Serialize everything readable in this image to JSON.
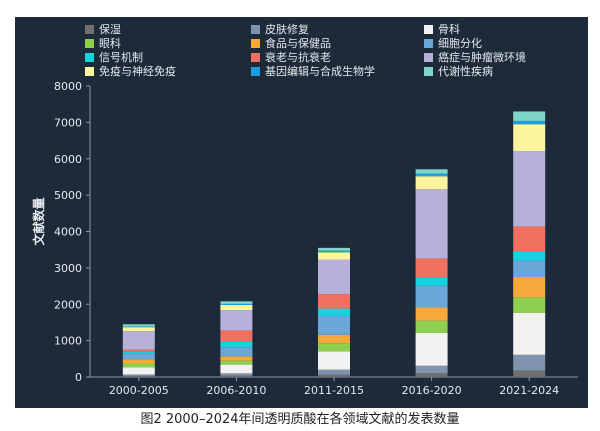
{
  "caption": "图2   2000–2024年间透明质酸在各领域文献的发表数量",
  "chart_data": {
    "type": "bar",
    "stacked": true,
    "categories": [
      "2000-2005",
      "2006-2010",
      "2011-2015",
      "2016-2020",
      "2021-2024"
    ],
    "ylabel": "文献数量",
    "xlabel": "",
    "ylim": [
      0,
      8000
    ],
    "yticks": [
      "0",
      "1000",
      "2000",
      "3000",
      "4000",
      "5000",
      "6000",
      "7000",
      "8000"
    ],
    "legend_position": "top",
    "grid": false,
    "series": [
      {
        "name": "保湿",
        "color": "#6f6f6f",
        "values": [
          30,
          40,
          60,
          110,
          180
        ]
      },
      {
        "name": "皮肤修复",
        "color": "#7f93ae",
        "values": [
          40,
          60,
          140,
          200,
          430
        ]
      },
      {
        "name": "骨科",
        "color": "#f2f2f2",
        "values": [
          200,
          240,
          500,
          900,
          1150
        ]
      },
      {
        "name": "眼科",
        "color": "#8fcf4f",
        "values": [
          100,
          110,
          230,
          340,
          430
        ]
      },
      {
        "name": "食品与保健品",
        "color": "#f6a83a",
        "values": [
          110,
          120,
          230,
          360,
          560
        ]
      },
      {
        "name": "细胞分化",
        "color": "#6aa6d8",
        "values": [
          170,
          250,
          520,
          600,
          450
        ]
      },
      {
        "name": "信号机制",
        "color": "#19d2e0",
        "values": [
          40,
          160,
          200,
          230,
          260
        ]
      },
      {
        "name": "衰老与抗衰老",
        "color": "#f2705f",
        "values": [
          60,
          300,
          400,
          520,
          680
        ]
      },
      {
        "name": "癌症与肿瘤微环境",
        "color": "#b7b0d9",
        "values": [
          510,
          560,
          950,
          1900,
          2070
        ]
      },
      {
        "name": "免疫与神经免疫",
        "color": "#fbf59d",
        "values": [
          110,
          140,
          200,
          360,
          740
        ]
      },
      {
        "name": "基因编辑与合成生物学",
        "color": "#1aa0e0",
        "values": [
          20,
          30,
          40,
          70,
          90
        ]
      },
      {
        "name": "代谢性疾病",
        "color": "#7fd6c8",
        "values": [
          60,
          70,
          80,
          120,
          260
        ]
      }
    ]
  }
}
